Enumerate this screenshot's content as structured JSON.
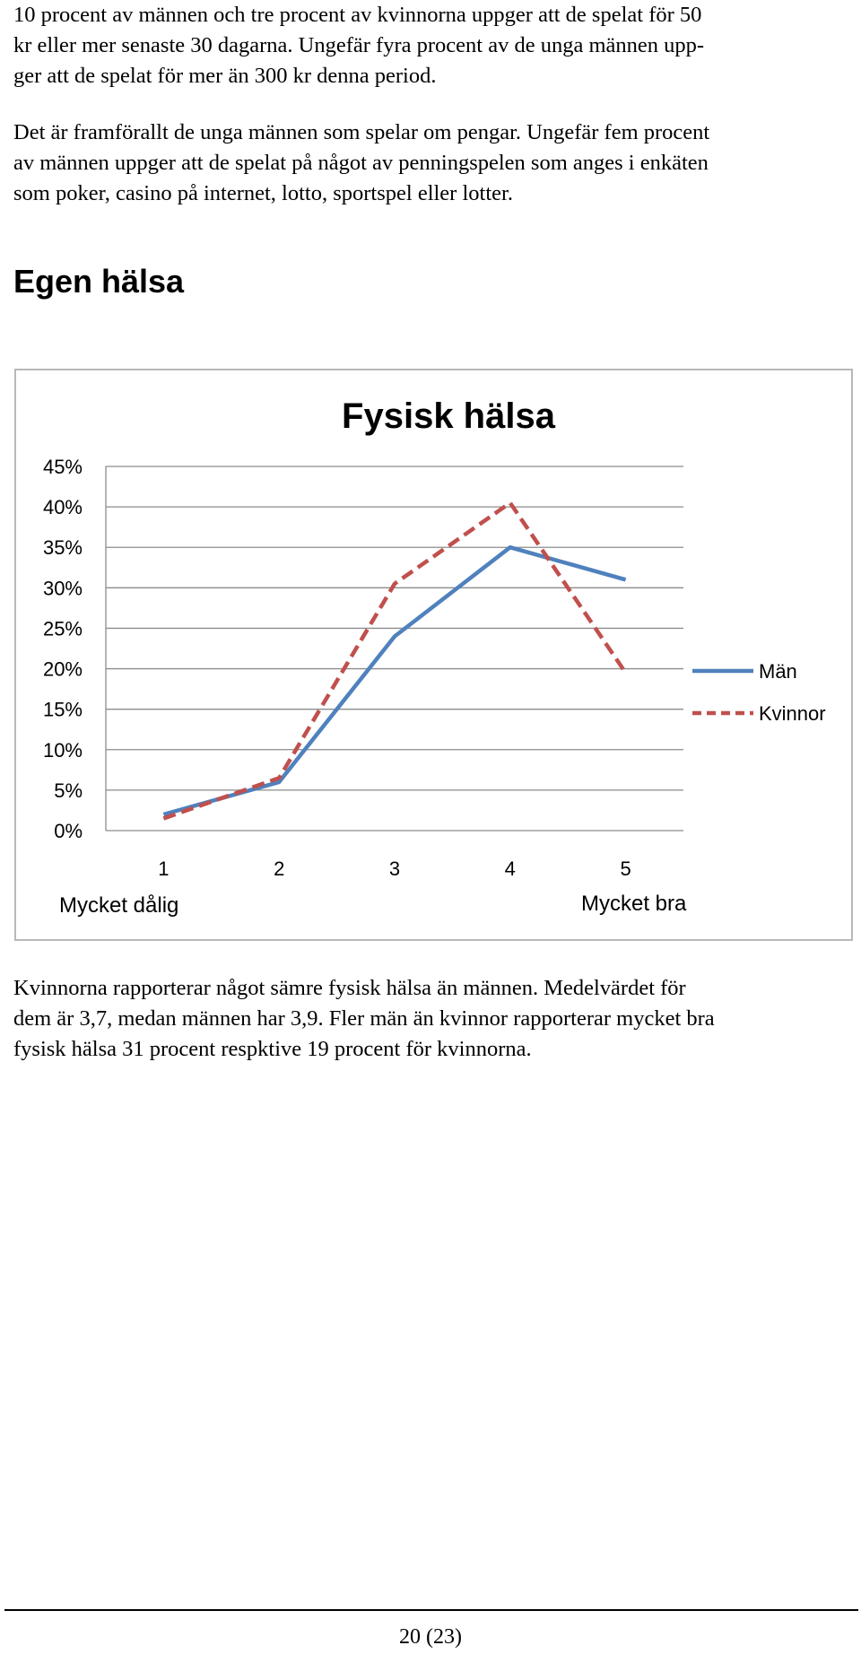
{
  "paragraph_1": {
    "lines": [
      "10 procent av männen och tre procent av kvinnorna uppger att de spelat för 50",
      "kr eller mer senaste 30 dagarna. Ungefär fyra procent av de unga männen upp-",
      "ger att de spelat för mer än 300 kr denna period."
    ]
  },
  "paragraph_2": {
    "lines": [
      "Det är framförallt de unga männen som spelar om pengar. Ungefär fem procent",
      "av männen uppger att de spelat på något av penningspelen som anges i enkäten",
      "som poker, casino på internet, lotto, sportspel eller lotter."
    ]
  },
  "section_heading": "Egen hälsa",
  "chart_data": {
    "type": "line",
    "title": "Fysisk hälsa",
    "categories": [
      "1",
      "2",
      "3",
      "4",
      "5"
    ],
    "x_end_labels": {
      "left": "Mycket dålig",
      "right": "Mycket bra"
    },
    "ylim": [
      0,
      45
    ],
    "yticks": [
      "0%",
      "5%",
      "10%",
      "15%",
      "20%",
      "25%",
      "30%",
      "35%",
      "40%",
      "45%"
    ],
    "y_step": 5,
    "grid": true,
    "legend_position": "right",
    "series": [
      {
        "name": "Män",
        "values": [
          2,
          6,
          24,
          35,
          31
        ],
        "color": "#4f81bd",
        "style": "solid"
      },
      {
        "name": "Kvinnor",
        "values": [
          1.5,
          6.5,
          30.5,
          40.5,
          19.5
        ],
        "color": "#c0504d",
        "style": "dashed"
      }
    ]
  },
  "paragraph_3": {
    "lines": [
      "Kvinnorna rapporterar något sämre fysisk hälsa än männen. Medelvärdet för",
      "dem är 3,7, medan männen har 3,9. Fler män än kvinnor rapporterar mycket bra",
      "fysisk hälsa 31 procent respktive 19 procent för kvinnorna."
    ]
  },
  "footer": {
    "page_number": "20 (23)"
  }
}
